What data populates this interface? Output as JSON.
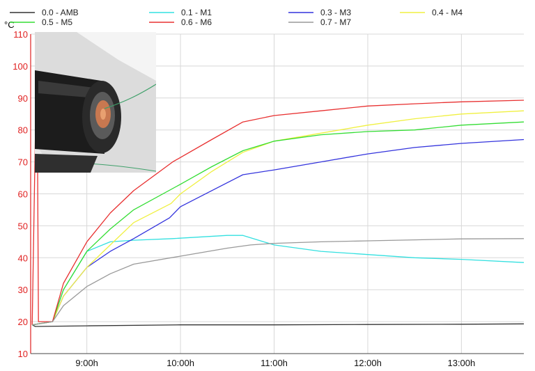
{
  "chart_data": {
    "type": "line",
    "ylabel": "°C",
    "ylim": [
      10,
      110
    ],
    "yticks": [
      10,
      20,
      30,
      40,
      50,
      60,
      70,
      80,
      90,
      100,
      110
    ],
    "xlim": [
      "08:24",
      "13:40"
    ],
    "xticks": [
      "9:00h",
      "10:00h",
      "11:00h",
      "12:00h",
      "13:00h"
    ],
    "xtick_times": [
      "09:00",
      "10:00",
      "11:00",
      "12:00",
      "13:00"
    ],
    "axis_color": "#e02020",
    "grid": true,
    "grid_color": "#d8d8d8",
    "legend_position": "top",
    "series": [
      {
        "name": "0.0 - AMB",
        "color": "#333333",
        "points": [
          [
            "08:25",
            19
          ],
          [
            "08:27",
            18.5
          ],
          [
            "09:00",
            18.7
          ],
          [
            "10:00",
            19
          ],
          [
            "11:00",
            19
          ],
          [
            "12:00",
            19.1
          ],
          [
            "13:00",
            19.2
          ],
          [
            "13:40",
            19.3
          ]
        ]
      },
      {
        "name": "0.1 - M1",
        "color": "#33e0e0",
        "points": [
          [
            "08:25",
            19
          ],
          [
            "08:38",
            20
          ],
          [
            "08:45",
            30
          ],
          [
            "09:00",
            42
          ],
          [
            "09:15",
            45
          ],
          [
            "09:30",
            45.5
          ],
          [
            "09:55",
            46
          ],
          [
            "10:30",
            47
          ],
          [
            "10:40",
            47
          ],
          [
            "11:00",
            44
          ],
          [
            "11:30",
            42
          ],
          [
            "12:00",
            41
          ],
          [
            "12:30",
            40
          ],
          [
            "13:00",
            39.5
          ],
          [
            "13:40",
            38.5
          ]
        ]
      },
      {
        "name": "0.3 - M3",
        "color": "#3333dd",
        "points": [
          [
            "08:25",
            19
          ],
          [
            "08:38",
            20
          ],
          [
            "08:45",
            28
          ],
          [
            "09:00",
            37
          ],
          [
            "09:15",
            42
          ],
          [
            "09:30",
            46
          ],
          [
            "09:53",
            52.5
          ],
          [
            "10:00",
            56
          ],
          [
            "10:20",
            61
          ],
          [
            "10:40",
            66
          ],
          [
            "11:00",
            67.5
          ],
          [
            "11:30",
            70
          ],
          [
            "12:00",
            72.5
          ],
          [
            "12:30",
            74.5
          ],
          [
            "13:00",
            75.8
          ],
          [
            "13:40",
            77
          ]
        ]
      },
      {
        "name": "0.4 - M4",
        "color": "#f0f040",
        "points": [
          [
            "08:25",
            19
          ],
          [
            "08:38",
            20
          ],
          [
            "08:45",
            28
          ],
          [
            "09:00",
            37
          ],
          [
            "09:15",
            44
          ],
          [
            "09:30",
            51
          ],
          [
            "09:54",
            57
          ],
          [
            "10:00",
            60
          ],
          [
            "10:20",
            67
          ],
          [
            "10:40",
            73
          ],
          [
            "11:00",
            76.5
          ],
          [
            "11:30",
            79
          ],
          [
            "12:00",
            81.5
          ],
          [
            "12:30",
            83.5
          ],
          [
            "13:00",
            85
          ],
          [
            "13:40",
            86
          ]
        ]
      },
      {
        "name": "0.5 - M5",
        "color": "#33dd33",
        "points": [
          [
            "08:25",
            19
          ],
          [
            "08:38",
            20
          ],
          [
            "08:45",
            30
          ],
          [
            "09:00",
            42
          ],
          [
            "09:15",
            49
          ],
          [
            "09:30",
            55
          ],
          [
            "10:00",
            63
          ],
          [
            "10:20",
            68.5
          ],
          [
            "10:40",
            73.5
          ],
          [
            "11:00",
            76.5
          ],
          [
            "11:30",
            78.5
          ],
          [
            "12:00",
            79.5
          ],
          [
            "12:30",
            80
          ],
          [
            "13:00",
            81.5
          ],
          [
            "13:40",
            82.5
          ]
        ]
      },
      {
        "name": "0.6 - M6",
        "color": "#e83030",
        "points": [
          [
            "08:25",
            19
          ],
          [
            "08:28",
            108
          ],
          [
            "08:29",
            20
          ],
          [
            "08:38",
            20
          ],
          [
            "08:45",
            32
          ],
          [
            "09:00",
            45
          ],
          [
            "09:15",
            54
          ],
          [
            "09:30",
            61
          ],
          [
            "09:55",
            70
          ],
          [
            "10:20",
            77
          ],
          [
            "10:40",
            82.5
          ],
          [
            "11:00",
            84.5
          ],
          [
            "11:30",
            86
          ],
          [
            "12:00",
            87.5
          ],
          [
            "12:30",
            88.2
          ],
          [
            "13:00",
            88.8
          ],
          [
            "13:40",
            89.3
          ]
        ]
      },
      {
        "name": "0.7 - M7",
        "color": "#999999",
        "points": [
          [
            "08:25",
            19
          ],
          [
            "08:38",
            20
          ],
          [
            "08:45",
            25
          ],
          [
            "09:00",
            31
          ],
          [
            "09:15",
            35
          ],
          [
            "09:30",
            38
          ],
          [
            "10:00",
            40.5
          ],
          [
            "10:30",
            43
          ],
          [
            "10:45",
            44
          ],
          [
            "11:00",
            44.5
          ],
          [
            "11:30",
            45
          ],
          [
            "12:00",
            45.3
          ],
          [
            "12:30",
            45.6
          ],
          [
            "13:00",
            45.9
          ],
          [
            "13:40",
            46
          ]
        ]
      }
    ]
  }
}
